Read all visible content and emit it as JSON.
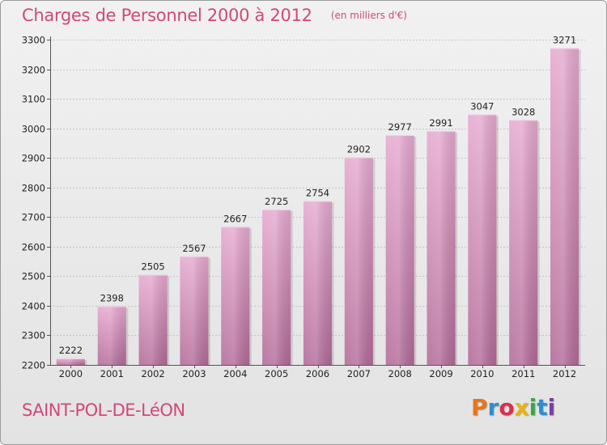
{
  "chart_data": {
    "type": "bar",
    "title": "Charges de Personnel 2000 à 2012",
    "subtitle": "(en milliers d'€)",
    "categories": [
      "2000",
      "2001",
      "2002",
      "2003",
      "2004",
      "2005",
      "2006",
      "2007",
      "2008",
      "2009",
      "2010",
      "2011",
      "2012"
    ],
    "values": [
      2222,
      2398,
      2505,
      2567,
      2667,
      2725,
      2754,
      2902,
      2977,
      2991,
      3047,
      3028,
      3271
    ],
    "value_labels": [
      "2222",
      "2398",
      "2505",
      "2567",
      "2667",
      "2725",
      "2754",
      "2902",
      "2977",
      "2991",
      "3047",
      "3028",
      "3271"
    ],
    "y_ticks": [
      2200,
      2300,
      2400,
      2500,
      2600,
      2700,
      2800,
      2900,
      3000,
      3100,
      3200,
      3300
    ],
    "y_tick_labels": [
      "2200",
      "2300",
      "2400",
      "2500",
      "2600",
      "2700",
      "2800",
      "2900",
      "3000",
      "3100",
      "3200",
      "3300"
    ],
    "ylim": [
      2200,
      3300
    ],
    "xlabel": "",
    "ylabel": "",
    "grid": true,
    "bar_color": "#cc7aa6"
  },
  "footer": {
    "place_name": "SAINT-POL-DE-LéON",
    "brand_name": "Proxiti",
    "brand_letters": [
      "P",
      "r",
      "o",
      "x",
      "i",
      "t",
      "i"
    ],
    "brand_colors": [
      "#e8751a",
      "#2e8fd0",
      "#d9304e",
      "#e8b412",
      "#3aa844",
      "#2e8fd0",
      "#7a3fa0"
    ]
  },
  "colors": {
    "title": "#d0487a",
    "bar_light": "#e4a8cb",
    "bar_dark": "#b06a96"
  }
}
